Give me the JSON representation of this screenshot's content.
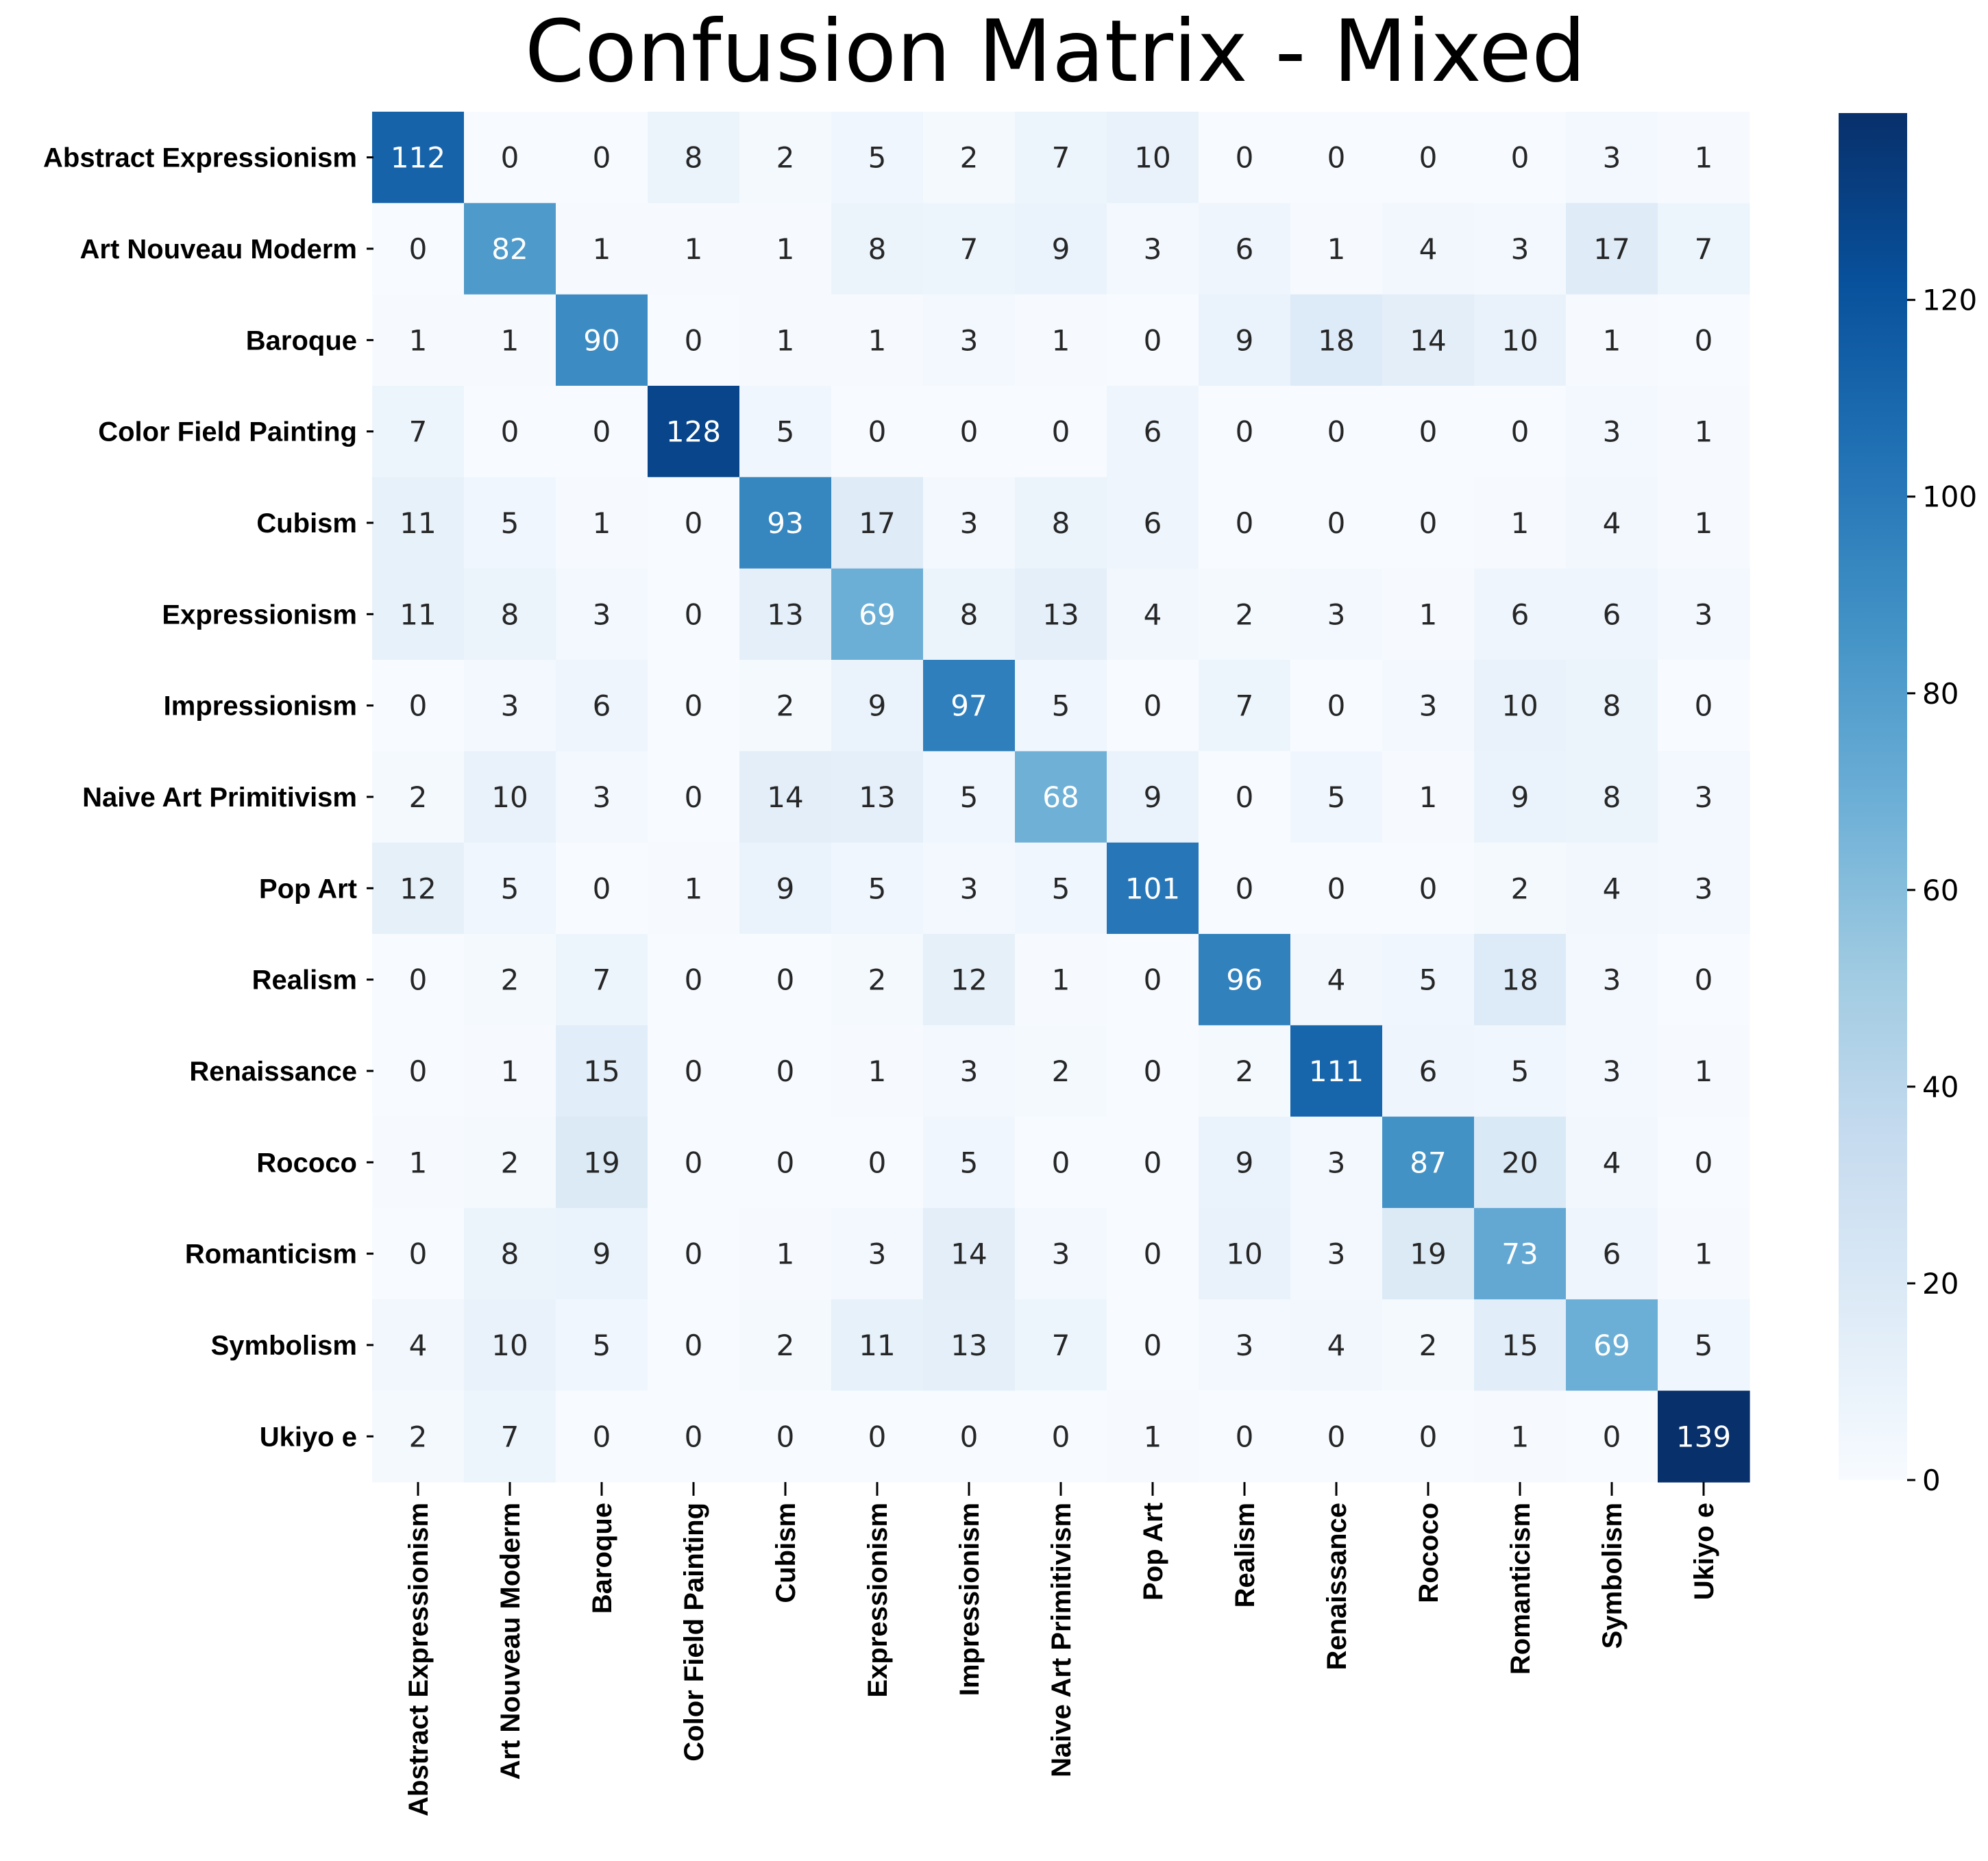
{
  "chart_data": {
    "type": "heatmap",
    "title": "Confusion Matrix - Mixed",
    "row_labels": [
      "Abstract Expressionism",
      "Art Nouveau Moderm",
      "Baroque",
      "Color Field Painting",
      "Cubism",
      "Expressionism",
      "Impressionism",
      "Naive Art Primitivism",
      "Pop Art",
      "Realism",
      "Renaissance",
      "Rococo",
      "Romanticism",
      "Symbolism",
      "Ukiyo e"
    ],
    "col_labels": [
      "Abstract Expressionism",
      "Art Nouveau Moderm",
      "Baroque",
      "Color Field Painting",
      "Cubism",
      "Expressionism",
      "Impressionism",
      "Naive Art Primitivism",
      "Pop Art",
      "Realism",
      "Renaissance",
      "Rococo",
      "Romanticism",
      "Symbolism",
      "Ukiyo e"
    ],
    "values": [
      [
        112,
        0,
        0,
        8,
        2,
        5,
        2,
        7,
        10,
        0,
        0,
        0,
        0,
        3,
        1
      ],
      [
        0,
        82,
        1,
        1,
        1,
        8,
        7,
        9,
        3,
        6,
        1,
        4,
        3,
        17,
        7
      ],
      [
        1,
        1,
        90,
        0,
        1,
        1,
        3,
        1,
        0,
        9,
        18,
        14,
        10,
        1,
        0
      ],
      [
        7,
        0,
        0,
        128,
        5,
        0,
        0,
        0,
        6,
        0,
        0,
        0,
        0,
        3,
        1
      ],
      [
        11,
        5,
        1,
        0,
        93,
        17,
        3,
        8,
        6,
        0,
        0,
        0,
        1,
        4,
        1
      ],
      [
        11,
        8,
        3,
        0,
        13,
        69,
        8,
        13,
        4,
        2,
        3,
        1,
        6,
        6,
        3
      ],
      [
        0,
        3,
        6,
        0,
        2,
        9,
        97,
        5,
        0,
        7,
        0,
        3,
        10,
        8,
        0
      ],
      [
        2,
        10,
        3,
        0,
        14,
        13,
        5,
        68,
        9,
        0,
        5,
        1,
        9,
        8,
        3
      ],
      [
        12,
        5,
        0,
        1,
        9,
        5,
        3,
        5,
        101,
        0,
        0,
        0,
        2,
        4,
        3
      ],
      [
        0,
        2,
        7,
        0,
        0,
        2,
        12,
        1,
        0,
        96,
        4,
        5,
        18,
        3,
        0
      ],
      [
        0,
        1,
        15,
        0,
        0,
        1,
        3,
        2,
        0,
        2,
        111,
        6,
        5,
        3,
        1
      ],
      [
        1,
        2,
        19,
        0,
        0,
        0,
        5,
        0,
        0,
        9,
        3,
        87,
        20,
        4,
        0
      ],
      [
        0,
        8,
        9,
        0,
        1,
        3,
        14,
        3,
        0,
        10,
        3,
        19,
        73,
        6,
        1
      ],
      [
        4,
        10,
        5,
        0,
        2,
        11,
        13,
        7,
        0,
        3,
        4,
        2,
        15,
        69,
        5
      ],
      [
        2,
        7,
        0,
        0,
        0,
        0,
        0,
        0,
        1,
        0,
        0,
        0,
        1,
        0,
        139
      ]
    ],
    "colorbar": {
      "colormap": "Blues",
      "vmin": 0,
      "vmax": 139,
      "ticks": [
        0,
        20,
        40,
        60,
        80,
        100,
        120
      ],
      "tick_labels": [
        "0",
        "20",
        "40",
        "60",
        "80",
        "100",
        "120"
      ]
    }
  }
}
